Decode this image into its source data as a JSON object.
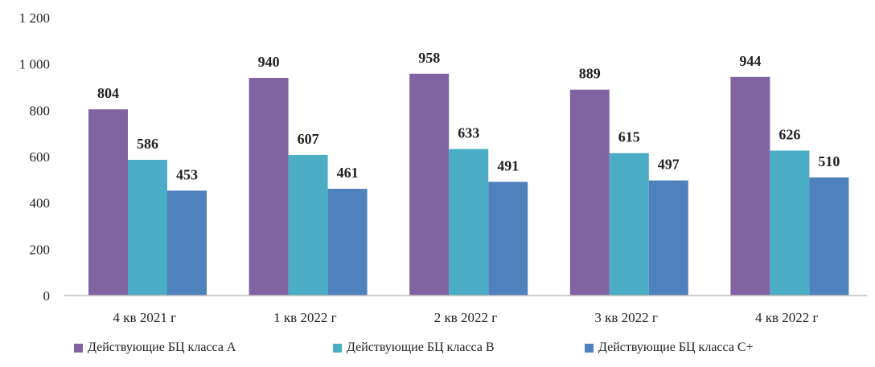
{
  "chart_data": {
    "type": "bar",
    "categories": [
      "4 кв 2021 г",
      "1 кв 2022 г",
      "2 кв 2022 г",
      "3 кв 2022 г",
      "4 кв 2022 г"
    ],
    "series": [
      {
        "name": "Действующие БЦ класса А",
        "values": [
          804,
          940,
          958,
          889,
          944
        ],
        "color": "#8064a2"
      },
      {
        "name": "Действующие БЦ класса В",
        "values": [
          586,
          607,
          633,
          615,
          626
        ],
        "color": "#4bacc6"
      },
      {
        "name": "Действующие БЦ класса С+",
        "values": [
          453,
          461,
          491,
          497,
          510
        ],
        "color": "#4f81bd"
      }
    ],
    "ylim": [
      0,
      1200
    ],
    "yticks": [
      0,
      200,
      400,
      600,
      800,
      1000,
      1200
    ],
    "ytick_labels": [
      "0",
      "200",
      "400",
      "600",
      "800",
      "1 000",
      "1 200"
    ],
    "grid": false,
    "legend": "bottom",
    "title": "",
    "xlabel": "",
    "ylabel": ""
  }
}
